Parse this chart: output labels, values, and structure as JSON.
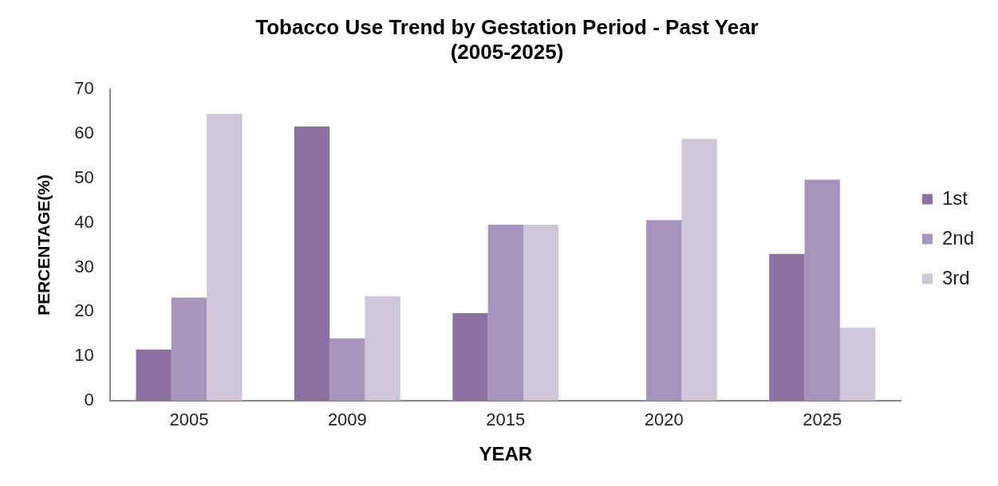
{
  "chart_data": {
    "type": "bar",
    "title": "Tobacco Use Trend by Gestation Period - Past Year",
    "subtitle": "(2005-2025)",
    "xlabel": "YEAR",
    "ylabel": "PERCENTAGE(%)",
    "categories": [
      "2005",
      "2009",
      "2015",
      "2020",
      "2025"
    ],
    "series": [
      {
        "name": "1st",
        "color": "#8b71a3",
        "values": [
          11.5,
          61.7,
          19.7,
          null,
          33
        ]
      },
      {
        "name": "2nd",
        "color": "#a794bc",
        "values": [
          23.2,
          14,
          39.6,
          40.6,
          49.7
        ]
      },
      {
        "name": "3rd",
        "color": "#cfc6d9",
        "values": [
          64.5,
          23.5,
          39.6,
          58.9,
          16.4
        ]
      }
    ],
    "ylim": [
      0,
      70
    ],
    "yticks": [
      0,
      10,
      20,
      30,
      40,
      50,
      60,
      70
    ],
    "grid": false,
    "legend": "right"
  }
}
